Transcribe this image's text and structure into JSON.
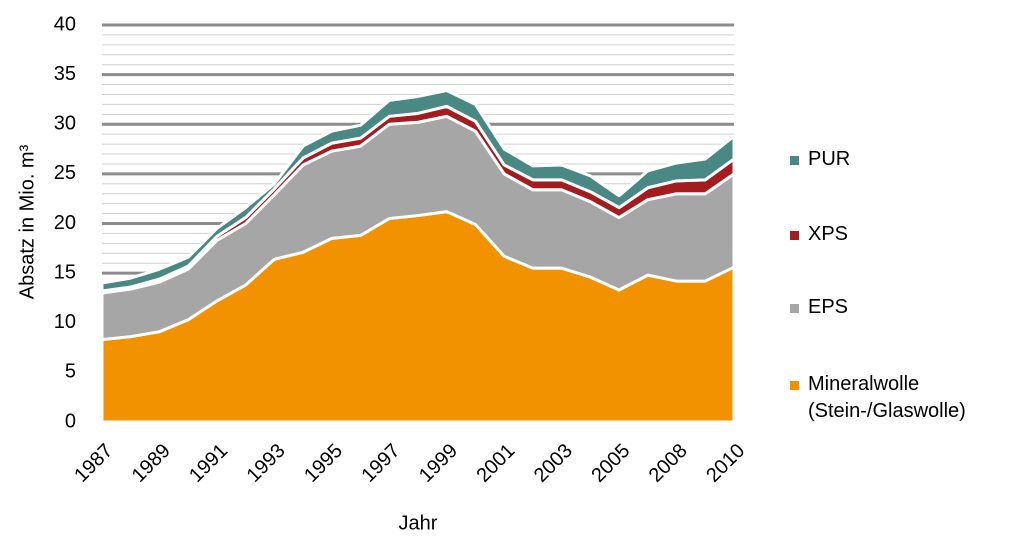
{
  "chart_data": {
    "type": "stacked_area",
    "x_label": "Jahr",
    "y_label": "Absatz in Mio. m³",
    "categories": [
      "1987",
      null,
      "1989",
      null,
      "1991",
      null,
      "1993",
      null,
      "1995",
      null,
      "1997",
      null,
      "1999",
      null,
      "2001",
      null,
      "2003",
      null,
      "2005",
      null,
      "2008",
      null,
      "2010"
    ],
    "series": [
      {
        "name": "Mineralwolle (Stein-/Glaswolle)",
        "color": "#f39200",
        "values": [
          8.3,
          8.6,
          9.1,
          10.3,
          12.2,
          13.8,
          16.4,
          17.1,
          18.5,
          18.8,
          20.5,
          20.8,
          21.2,
          19.9,
          16.7,
          15.5,
          15.5,
          14.6,
          13.3,
          14.8,
          14.2,
          14.2,
          15.6
        ]
      },
      {
        "name": "EPS",
        "color": "#a6a6a6",
        "values": [
          4.7,
          4.8,
          5.0,
          5.1,
          6.1,
          6.2,
          6.5,
          8.8,
          8.8,
          9.0,
          9.5,
          9.4,
          9.6,
          9.4,
          8.3,
          7.9,
          7.9,
          7.6,
          7.3,
          7.6,
          8.8,
          8.8,
          9.4
        ]
      },
      {
        "name": "XPS",
        "color": "#a51c1f",
        "values": [
          0.2,
          0.2,
          0.3,
          0.3,
          0.4,
          0.6,
          0.6,
          0.7,
          0.8,
          0.8,
          0.8,
          0.9,
          1.0,
          1.0,
          0.9,
          1.0,
          1.0,
          1.0,
          1.0,
          1.2,
          1.3,
          1.4,
          1.5
        ]
      },
      {
        "name": "PUR",
        "color": "#4a8883",
        "values": [
          0.8,
          0.9,
          1.0,
          0.9,
          0.8,
          1.0,
          0.5,
          1.2,
          1.2,
          1.3,
          1.6,
          1.7,
          1.6,
          1.7,
          1.6,
          1.4,
          1.5,
          1.6,
          1.2,
          1.7,
          1.8,
          2.1,
          2.3
        ]
      }
    ],
    "ylim": [
      0,
      40
    ],
    "yticks": [
      0,
      5,
      10,
      15,
      20,
      25,
      30,
      35,
      40
    ],
    "minor_yticks": [
      1,
      2,
      3,
      4,
      6,
      7,
      8,
      9,
      11,
      12,
      13,
      14,
      16,
      17,
      18,
      19,
      21,
      22,
      23,
      24,
      26,
      27,
      28,
      29,
      31,
      32,
      33,
      34,
      36,
      37,
      38,
      39
    ],
    "grid": true,
    "legend": "right"
  }
}
